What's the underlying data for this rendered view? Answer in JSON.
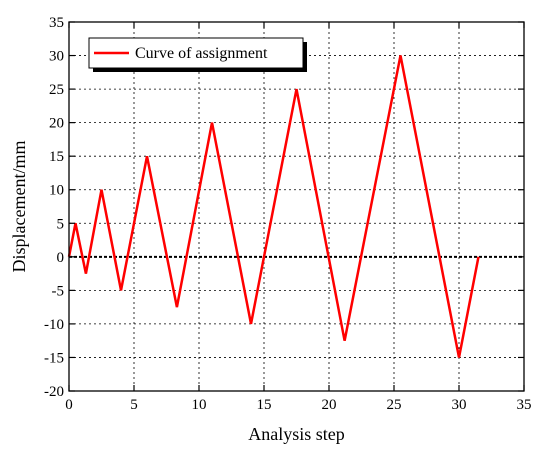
{
  "chart_data": {
    "type": "line",
    "title": "",
    "xlabel": "Analysis step",
    "ylabel": "Displacement/mm",
    "xlim": [
      0,
      35
    ],
    "ylim": [
      -20,
      35
    ],
    "xticks": [
      "0",
      "5",
      "10",
      "15",
      "20",
      "25",
      "30",
      "35"
    ],
    "yticks": [
      "35",
      "30",
      "25",
      "20",
      "15",
      "10",
      "5",
      "0",
      "-5",
      "-10",
      "-15",
      "-20"
    ],
    "grid": true,
    "legend_position": "top-left",
    "series": [
      {
        "name": "Curve of assignment",
        "color": "#ff0000",
        "x": [
          0,
          0.5,
          1.3,
          2.5,
          4.0,
          6.0,
          8.3,
          11.0,
          14.0,
          17.5,
          21.2,
          25.5,
          30.0,
          31.5
        ],
        "y": [
          0,
          5,
          -2.5,
          10,
          -5,
          15,
          -7.5,
          20,
          -10,
          25,
          -12.5,
          30,
          -15,
          0
        ]
      }
    ],
    "zero_line": {
      "y": 0,
      "style": "dotted",
      "color": "#000000"
    }
  }
}
